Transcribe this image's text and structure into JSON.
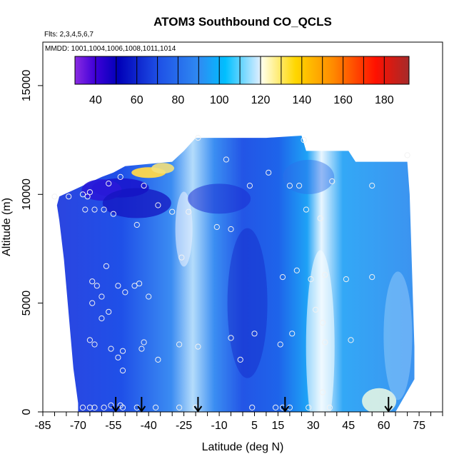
{
  "chart_data": {
    "type": "heatmap",
    "title": "ATOM3 Southbound CO_QCLS",
    "flights_label": "Flts: 2,3,4,5,6,7",
    "dates_label": "MMDD: 1001,1004,1006,1008,1011,1014",
    "xlabel": "Latitude (deg N)",
    "ylabel": "Altitude (m)",
    "xlim": [
      -85,
      85
    ],
    "ylim": [
      0,
      17000
    ],
    "x_tick_labels": [
      "-85",
      "-70",
      "-55",
      "-40",
      "-25",
      "-10",
      "5",
      "15",
      "30",
      "45",
      "60",
      "75"
    ],
    "x_ticks": [
      -85,
      -70,
      -55,
      -40,
      -25,
      -10,
      5,
      15,
      30,
      45,
      60,
      75
    ],
    "y_ticks": [
      0,
      5000,
      10000,
      15000
    ],
    "y_tick_labels": [
      "0",
      "5000",
      "10000",
      "15000"
    ],
    "colorbar": {
      "ticks": [
        40,
        60,
        80,
        100,
        120,
        140,
        160,
        180
      ],
      "tick_labels": [
        "40",
        "60",
        "80",
        "100",
        "120",
        "140",
        "160",
        "180"
      ],
      "range": [
        30,
        192
      ],
      "colors": [
        "#8a2be2",
        "#0000cd",
        "#1e6ee6",
        "#00bfff",
        "#fffff0",
        "#ffd700",
        "#ff8c00",
        "#ff0000",
        "#a52a2a"
      ]
    },
    "profile_arrows_lat": [
      -54,
      -43,
      -19,
      18,
      62
    ],
    "observations": [
      {
        "lat": -80,
        "alt": 9900
      },
      {
        "lat": -74,
        "alt": 9900
      },
      {
        "lat": -68,
        "alt": 10000
      },
      {
        "lat": -65,
        "alt": 10100
      },
      {
        "lat": -66,
        "alt": 9900
      },
      {
        "lat": -67,
        "alt": 9300
      },
      {
        "lat": -63,
        "alt": 9300
      },
      {
        "lat": -59,
        "alt": 9300
      },
      {
        "lat": -55,
        "alt": 9100
      },
      {
        "lat": -57,
        "alt": 10500
      },
      {
        "lat": -52,
        "alt": 10800
      },
      {
        "lat": -42,
        "alt": 10400
      },
      {
        "lat": -45,
        "alt": 8600
      },
      {
        "lat": -36,
        "alt": 9500
      },
      {
        "lat": -30,
        "alt": 9200
      },
      {
        "lat": -23,
        "alt": 9200
      },
      {
        "lat": -19,
        "alt": 12600
      },
      {
        "lat": -7,
        "alt": 11600
      },
      {
        "lat": -11,
        "alt": 8500
      },
      {
        "lat": -5,
        "alt": 8400
      },
      {
        "lat": 3,
        "alt": 10400
      },
      {
        "lat": 11,
        "alt": 11000
      },
      {
        "lat": 20,
        "alt": 10400
      },
      {
        "lat": 24,
        "alt": 10400
      },
      {
        "lat": 26,
        "alt": 12500
      },
      {
        "lat": 38,
        "alt": 10600
      },
      {
        "lat": 55,
        "alt": 10400
      },
      {
        "lat": 70,
        "alt": 11800
      },
      {
        "lat": 27,
        "alt": 9300
      },
      {
        "lat": 33,
        "alt": 8900
      },
      {
        "lat": -58,
        "alt": 6700
      },
      {
        "lat": -64,
        "alt": 6000
      },
      {
        "lat": -62,
        "alt": 5800
      },
      {
        "lat": -53,
        "alt": 5800
      },
      {
        "lat": -46,
        "alt": 5800
      },
      {
        "lat": -44,
        "alt": 5900
      },
      {
        "lat": -50,
        "alt": 5500
      },
      {
        "lat": -40,
        "alt": 5300
      },
      {
        "lat": -60,
        "alt": 5300
      },
      {
        "lat": -64,
        "alt": 5000
      },
      {
        "lat": -57,
        "alt": 4600
      },
      {
        "lat": -60,
        "alt": 4300
      },
      {
        "lat": -26,
        "alt": 7100
      },
      {
        "lat": 17,
        "alt": 6200
      },
      {
        "lat": 23,
        "alt": 6500
      },
      {
        "lat": 29,
        "alt": 6100
      },
      {
        "lat": 35,
        "alt": 6300
      },
      {
        "lat": 44,
        "alt": 6100
      },
      {
        "lat": 55,
        "alt": 6200
      },
      {
        "lat": 31,
        "alt": 4700
      },
      {
        "lat": 34,
        "alt": 4100
      },
      {
        "lat": 5,
        "alt": 3600
      },
      {
        "lat": 21,
        "alt": 3600
      },
      {
        "lat": -65,
        "alt": 3300
      },
      {
        "lat": -63,
        "alt": 3100
      },
      {
        "lat": -56,
        "alt": 2900
      },
      {
        "lat": -51,
        "alt": 2800
      },
      {
        "lat": -42,
        "alt": 3200
      },
      {
        "lat": -43,
        "alt": 2900
      },
      {
        "lat": -27,
        "alt": 3100
      },
      {
        "lat": -19,
        "alt": 3000
      },
      {
        "lat": -5,
        "alt": 3400
      },
      {
        "lat": 16,
        "alt": 3100
      },
      {
        "lat": 35,
        "alt": 3200
      },
      {
        "lat": 46,
        "alt": 3300
      },
      {
        "lat": -53,
        "alt": 2500
      },
      {
        "lat": -36,
        "alt": 2400
      },
      {
        "lat": -1,
        "alt": 2400
      },
      {
        "lat": -51,
        "alt": 1900
      },
      {
        "lat": -68,
        "alt": 200
      },
      {
        "lat": -65,
        "alt": 200
      },
      {
        "lat": -63,
        "alt": 200
      },
      {
        "lat": -59,
        "alt": 200
      },
      {
        "lat": -56,
        "alt": 300
      },
      {
        "lat": -52,
        "alt": 300
      },
      {
        "lat": -51,
        "alt": 200
      },
      {
        "lat": -45,
        "alt": 200
      },
      {
        "lat": -37,
        "alt": 200
      },
      {
        "lat": -27,
        "alt": 200
      },
      {
        "lat": -20,
        "alt": 200
      },
      {
        "lat": 4,
        "alt": 200
      },
      {
        "lat": 14,
        "alt": 200
      },
      {
        "lat": 17,
        "alt": 200
      },
      {
        "lat": 20,
        "alt": 200
      },
      {
        "lat": 28,
        "alt": 200
      },
      {
        "lat": 34,
        "alt": 900
      },
      {
        "lat": 37,
        "alt": 200
      }
    ]
  }
}
